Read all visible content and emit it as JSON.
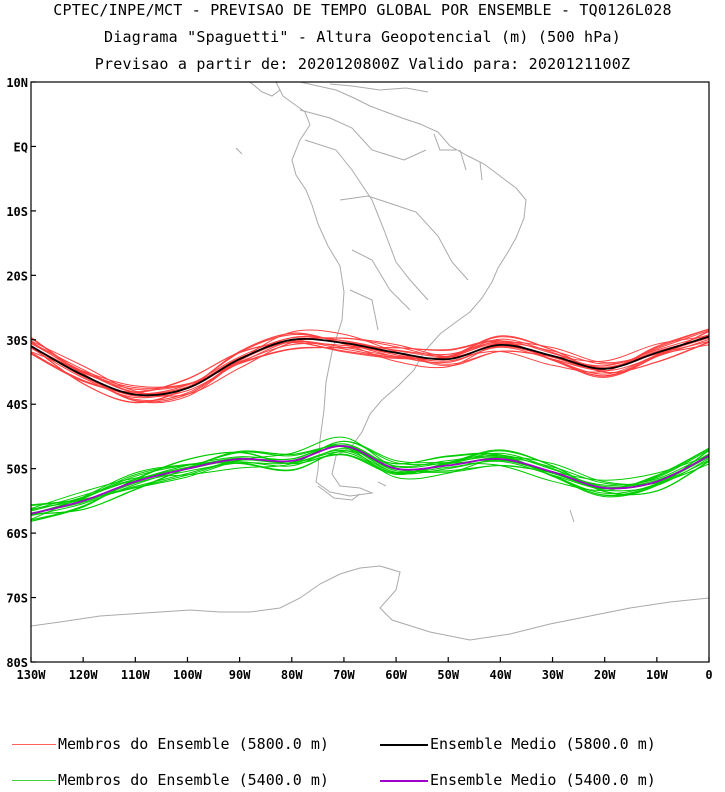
{
  "titles": {
    "line1": "CPTEC/INPE/MCT - PREVISAO DE TEMPO GLOBAL POR ENSEMBLE - TQ0126L028",
    "line2": "Diagrama \"Spaguetti\" - Altura Geopotencial (m) (500 hPa)",
    "line3": "Previsao a partir de: 2020120800Z  Valido para: 2020121100Z"
  },
  "chart_data": {
    "type": "line",
    "xlim": [
      -130,
      0
    ],
    "ylim": [
      -80,
      10
    ],
    "x_ticks": [
      {
        "value": -130,
        "label": "130W"
      },
      {
        "value": -120,
        "label": "120W"
      },
      {
        "value": -110,
        "label": "110W"
      },
      {
        "value": -100,
        "label": "100W"
      },
      {
        "value": -90,
        "label": "90W"
      },
      {
        "value": -80,
        "label": "80W"
      },
      {
        "value": -70,
        "label": "70W"
      },
      {
        "value": -60,
        "label": "60W"
      },
      {
        "value": -50,
        "label": "50W"
      },
      {
        "value": -40,
        "label": "40W"
      },
      {
        "value": -30,
        "label": "30W"
      },
      {
        "value": -20,
        "label": "20W"
      },
      {
        "value": -10,
        "label": "10W"
      },
      {
        "value": 0,
        "label": "0"
      }
    ],
    "y_ticks": [
      {
        "value": 10,
        "label": "10N"
      },
      {
        "value": 0,
        "label": "EQ"
      },
      {
        "value": -10,
        "label": "10S"
      },
      {
        "value": -20,
        "label": "20S"
      },
      {
        "value": -30,
        "label": "30S"
      },
      {
        "value": -40,
        "label": "40S"
      },
      {
        "value": -50,
        "label": "50S"
      },
      {
        "value": -60,
        "label": "60S"
      },
      {
        "value": -70,
        "label": "70S"
      },
      {
        "value": -80,
        "label": "80S"
      }
    ],
    "x": [
      -130,
      -120,
      -110,
      -100,
      -90,
      -80,
      -70,
      -60,
      -50,
      -40,
      -30,
      -20,
      -10,
      0
    ],
    "series": [
      {
        "name": "Membros do Ensemble (5800.0 m)",
        "kind": "members",
        "contour": 5800,
        "color": "#ff4040",
        "center": [
          -31,
          -35.5,
          -38.5,
          -37.5,
          -33,
          -30,
          -30.5,
          -32,
          -33,
          -30.8,
          -32.5,
          -34.5,
          -32,
          -29.5
        ]
      },
      {
        "name": "Ensemble Medio (5800.0 m)",
        "kind": "mean",
        "contour": 5800,
        "color": "#000000",
        "values": [
          -31,
          -35.5,
          -38.5,
          -37.5,
          -33,
          -30,
          -30.5,
          -32,
          -33,
          -30.8,
          -32.5,
          -34.5,
          -32,
          -29.5
        ]
      },
      {
        "name": "Membros do Ensemble (5400.0 m)",
        "kind": "members",
        "contour": 5400,
        "color": "#00cc00",
        "center": [
          -57,
          -55,
          -52,
          -50,
          -48.5,
          -48.8,
          -46.5,
          -50,
          -49.5,
          -48.5,
          -50.5,
          -53,
          -52,
          -48
        ]
      },
      {
        "name": "Ensemble Medio (5400.0 m)",
        "kind": "mean",
        "contour": 5400,
        "color": "#a000c8",
        "values": [
          -57,
          -55,
          -52,
          -50,
          -48.5,
          -48.8,
          -46.5,
          -50,
          -49.5,
          -48.5,
          -50.5,
          -53,
          -52,
          -48
        ]
      }
    ]
  },
  "legend": [
    {
      "label": "Membros do Ensemble (5800.0 m)",
      "color": "#ff6060"
    },
    {
      "label": "Ensemble Medio (5800.0 m)",
      "color": "#000000"
    },
    {
      "label": "Membros do Ensemble (5400.0 m)",
      "color": "#40d040"
    },
    {
      "label": "Ensemble Medio (5400.0 m)",
      "color": "#a000c8"
    }
  ]
}
